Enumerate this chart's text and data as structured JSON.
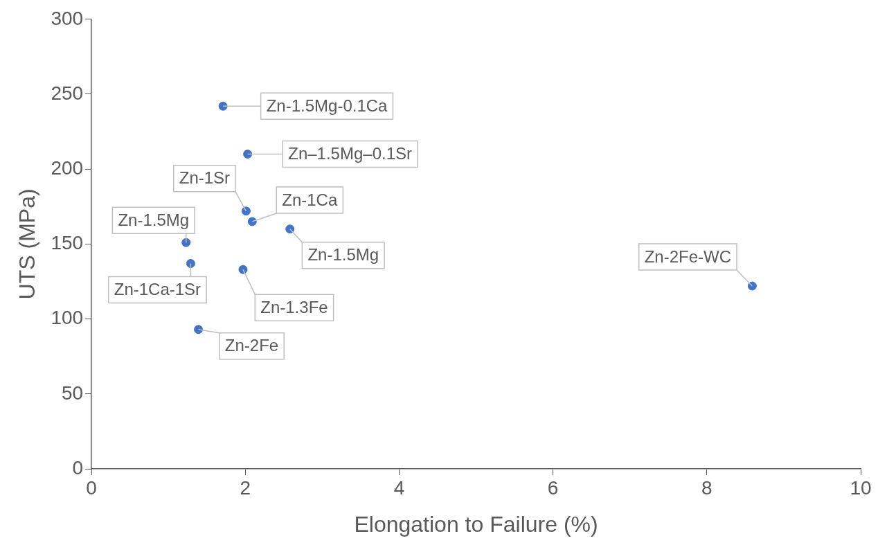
{
  "chart_data": {
    "type": "scatter",
    "xlabel": "Elongation to Failure (%)",
    "ylabel": "UTS (MPa)",
    "x": [
      1.71,
      2.03,
      2.01,
      2.09,
      2.58,
      1.23,
      1.29,
      1.97,
      1.39,
      8.59
    ],
    "values": [
      242,
      210,
      172,
      165,
      160,
      151,
      137,
      133,
      93,
      122
    ],
    "color": "#4472c4",
    "marker": "circle",
    "grid": false,
    "xlim": [
      0,
      10
    ],
    "ylim": [
      0,
      300
    ],
    "xticks": [
      0,
      2,
      4,
      6,
      8,
      10
    ],
    "yticks": [
      0,
      50,
      100,
      150,
      200,
      250,
      300
    ],
    "annotations": [
      {
        "text": "Zn-1.5Mg-0.1Ca",
        "x": 1.71,
        "y": 242
      },
      {
        "text": "Zn–1.5Mg–0.1Sr",
        "x": 2.03,
        "y": 210
      },
      {
        "text": "Zn-1Sr",
        "x": 2.01,
        "y": 172
      },
      {
        "text": "Zn-1Ca",
        "x": 2.09,
        "y": 165
      },
      {
        "text": "Zn-1.5Mg",
        "x": 2.58,
        "y": 160
      },
      {
        "text": "Zn-1.5Mg",
        "x": 1.23,
        "y": 151
      },
      {
        "text": "Zn-1Ca-1Sr",
        "x": 1.29,
        "y": 137
      },
      {
        "text": "Zn-1.3Fe",
        "x": 1.97,
        "y": 133
      },
      {
        "text": "Zn-2Fe",
        "x": 1.39,
        "y": 93
      },
      {
        "text": "Zn-2Fe-WC",
        "x": 8.59,
        "y": 122
      }
    ]
  }
}
